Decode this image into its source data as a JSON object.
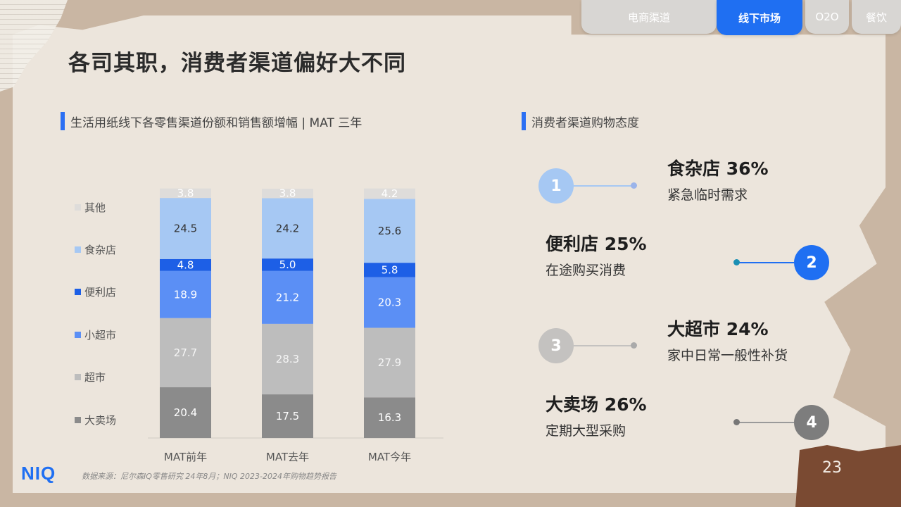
{
  "tabs": [
    {
      "label": "电商渠道",
      "active": false
    },
    {
      "label": "线下市场",
      "active": true
    },
    {
      "label": "O2O",
      "active": false
    },
    {
      "label": "餐饮",
      "active": false
    }
  ],
  "page_title": "各司其职，消费者渠道偏好大不同",
  "left_section_title": "生活用纸线下各零售渠道份额和销售额增幅 | MAT 三年",
  "right_section_title": "消费者渠道购物态度",
  "chart_data": {
    "type": "bar",
    "stacked": true,
    "categories": [
      "MAT前年",
      "MAT去年",
      "MAT今年"
    ],
    "series": [
      {
        "name": "大卖场",
        "color": "#8b8b8b",
        "values": [
          20.4,
          17.5,
          16.3
        ]
      },
      {
        "name": "超市",
        "color": "#bdbdbd",
        "values": [
          27.7,
          28.3,
          27.9
        ]
      },
      {
        "name": "小超市",
        "color": "#5b8ff5",
        "values": [
          18.9,
          21.2,
          20.3
        ]
      },
      {
        "name": "便利店",
        "color": "#1d5fe6",
        "values": [
          4.8,
          5.0,
          5.8
        ]
      },
      {
        "name": "食杂店",
        "color": "#a6c8f3",
        "values": [
          24.5,
          24.2,
          25.6
        ]
      },
      {
        "name": "其他",
        "color": "#dedcda",
        "values": [
          3.8,
          3.8,
          4.2
        ]
      }
    ],
    "legend_order": [
      "其他",
      "食杂店",
      "便利店",
      "小超市",
      "超市",
      "大卖场"
    ],
    "legend_position": "left"
  },
  "attitudes": [
    {
      "num": "1",
      "title": "食杂店 36%",
      "desc": "紧急临时需求",
      "color": "#a6c8f3"
    },
    {
      "num": "2",
      "title": "便利店 25%",
      "desc": "在途购买消费",
      "color": "#1f6ff2"
    },
    {
      "num": "3",
      "title": "大超市 24%",
      "desc": "家中日常一般性补货",
      "color": "#c4c2c0"
    },
    {
      "num": "4",
      "title": "大卖场 26%",
      "desc": "定期大型采购",
      "color": "#7d7d7d"
    }
  ],
  "logo": "NIQ",
  "source": "数据来源：尼尔森IQ零售研究 24年8月；NIQ 2023-2024年购物趋势报告",
  "page_number": "23"
}
